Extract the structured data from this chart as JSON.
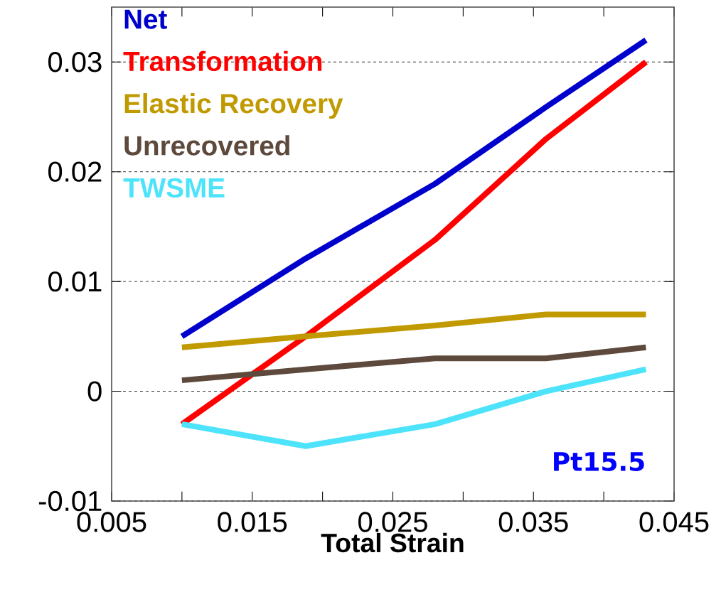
{
  "chart_data": {
    "type": "line",
    "xlabel": "Total Strain",
    "x": [
      0.01,
      0.0188,
      0.028,
      0.0359,
      0.043
    ],
    "series": [
      {
        "name": "Net",
        "color": "#0000cc",
        "values": [
          0.005,
          0.0121,
          0.0189,
          0.0259,
          0.032
        ]
      },
      {
        "name": "Transformation",
        "color": "#ff0000",
        "values": [
          -0.003,
          0.005,
          0.0138,
          0.023,
          0.03
        ]
      },
      {
        "name": "Elastic Recovery",
        "color": "#c09a00",
        "values": [
          0.004,
          0.005,
          0.006,
          0.007,
          0.007
        ]
      },
      {
        "name": "Unrecovered",
        "color": "#5e4a3c",
        "values": [
          0.001,
          0.002,
          0.003,
          0.003,
          0.004
        ]
      },
      {
        "name": "TWSME",
        "color": "#4de3fa",
        "values": [
          -0.003,
          -0.005,
          -0.003,
          0,
          0.002
        ]
      }
    ],
    "xlim": [
      0.005,
      0.045
    ],
    "xticks": [
      0.005,
      {
        "value": 0.01,
        "label": null
      },
      0.015,
      {
        "value": 0.02,
        "label": null
      },
      0.025,
      {
        "value": 0.03,
        "label": null
      },
      0.035,
      {
        "value": 0.04,
        "label": null
      },
      0.045
    ],
    "ylim": [
      -0.01,
      0.035
    ],
    "yticks": [
      -0.01,
      0,
      0.01,
      0.02,
      0.03
    ],
    "grid": "y",
    "legend": "top left",
    "marker": "none",
    "line_style": "solid",
    "annotations": [
      "Pt15.5"
    ]
  }
}
